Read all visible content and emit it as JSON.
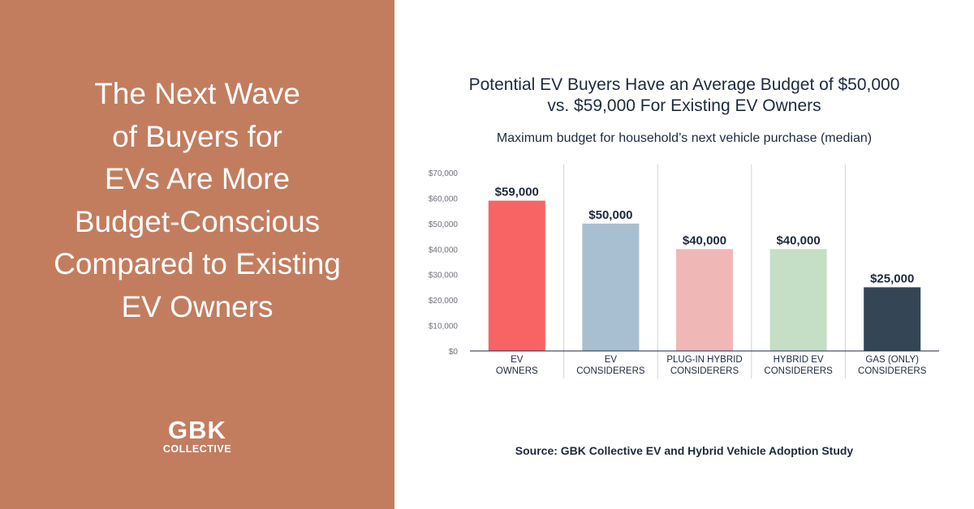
{
  "headline": "The Next Wave\nof Buyers for\nEVs Are More\nBudget-Conscious\nCompared to Existing\nEV Owners",
  "logo": {
    "main": "GBK",
    "sub": "COLLECTIVE"
  },
  "chart_title": "Potential EV Buyers Have an Average Budget of $50,000\nvs. $59,000 For Existing EV Owners",
  "chart_subtitle": "Maximum budget for household’s next vehicle purchase (median)",
  "source": "Source: GBK Collective EV and Hybrid Vehicle Adoption Study",
  "colors": {
    "left_panel": "#c27d5f",
    "text_dark": "#1d2a3d",
    "grid": "#cfd3d8",
    "axis_label": "#6b7079"
  },
  "chart_data": {
    "type": "bar",
    "title": "Potential EV Buyers Have an Average Budget of $50,000 vs. $59,000 For Existing EV Owners",
    "subtitle": "Maximum budget for household’s next vehicle purchase (median)",
    "categories": [
      [
        "EV",
        "OWNERS"
      ],
      [
        "EV",
        "CONSIDERERS"
      ],
      [
        "PLUG-IN HYBRID",
        "CONSIDERERS"
      ],
      [
        "HYBRID EV",
        "CONSIDERERS"
      ],
      [
        "GAS (ONLY)",
        "CONSIDERERS"
      ]
    ],
    "values": [
      59000,
      50000,
      40000,
      40000,
      25000
    ],
    "data_labels": [
      "$59,000",
      "$50,000",
      "$40,000",
      "$40,000",
      "$25,000"
    ],
    "bar_colors": [
      "#f76463",
      "#a8bfd1",
      "#efb8b7",
      "#c4dfc5",
      "#344655"
    ],
    "yticks": [
      0,
      10000,
      20000,
      30000,
      40000,
      50000,
      60000,
      70000
    ],
    "ytick_labels": [
      "$0",
      "$10,000",
      "$20,000",
      "$30,000",
      "$40,000",
      "$50,000",
      "$60,000",
      "$70,000"
    ],
    "ylim": [
      0,
      70000
    ],
    "xlabel": "",
    "ylabel": "",
    "grid": "vertical separators between categories",
    "legend": "none"
  }
}
